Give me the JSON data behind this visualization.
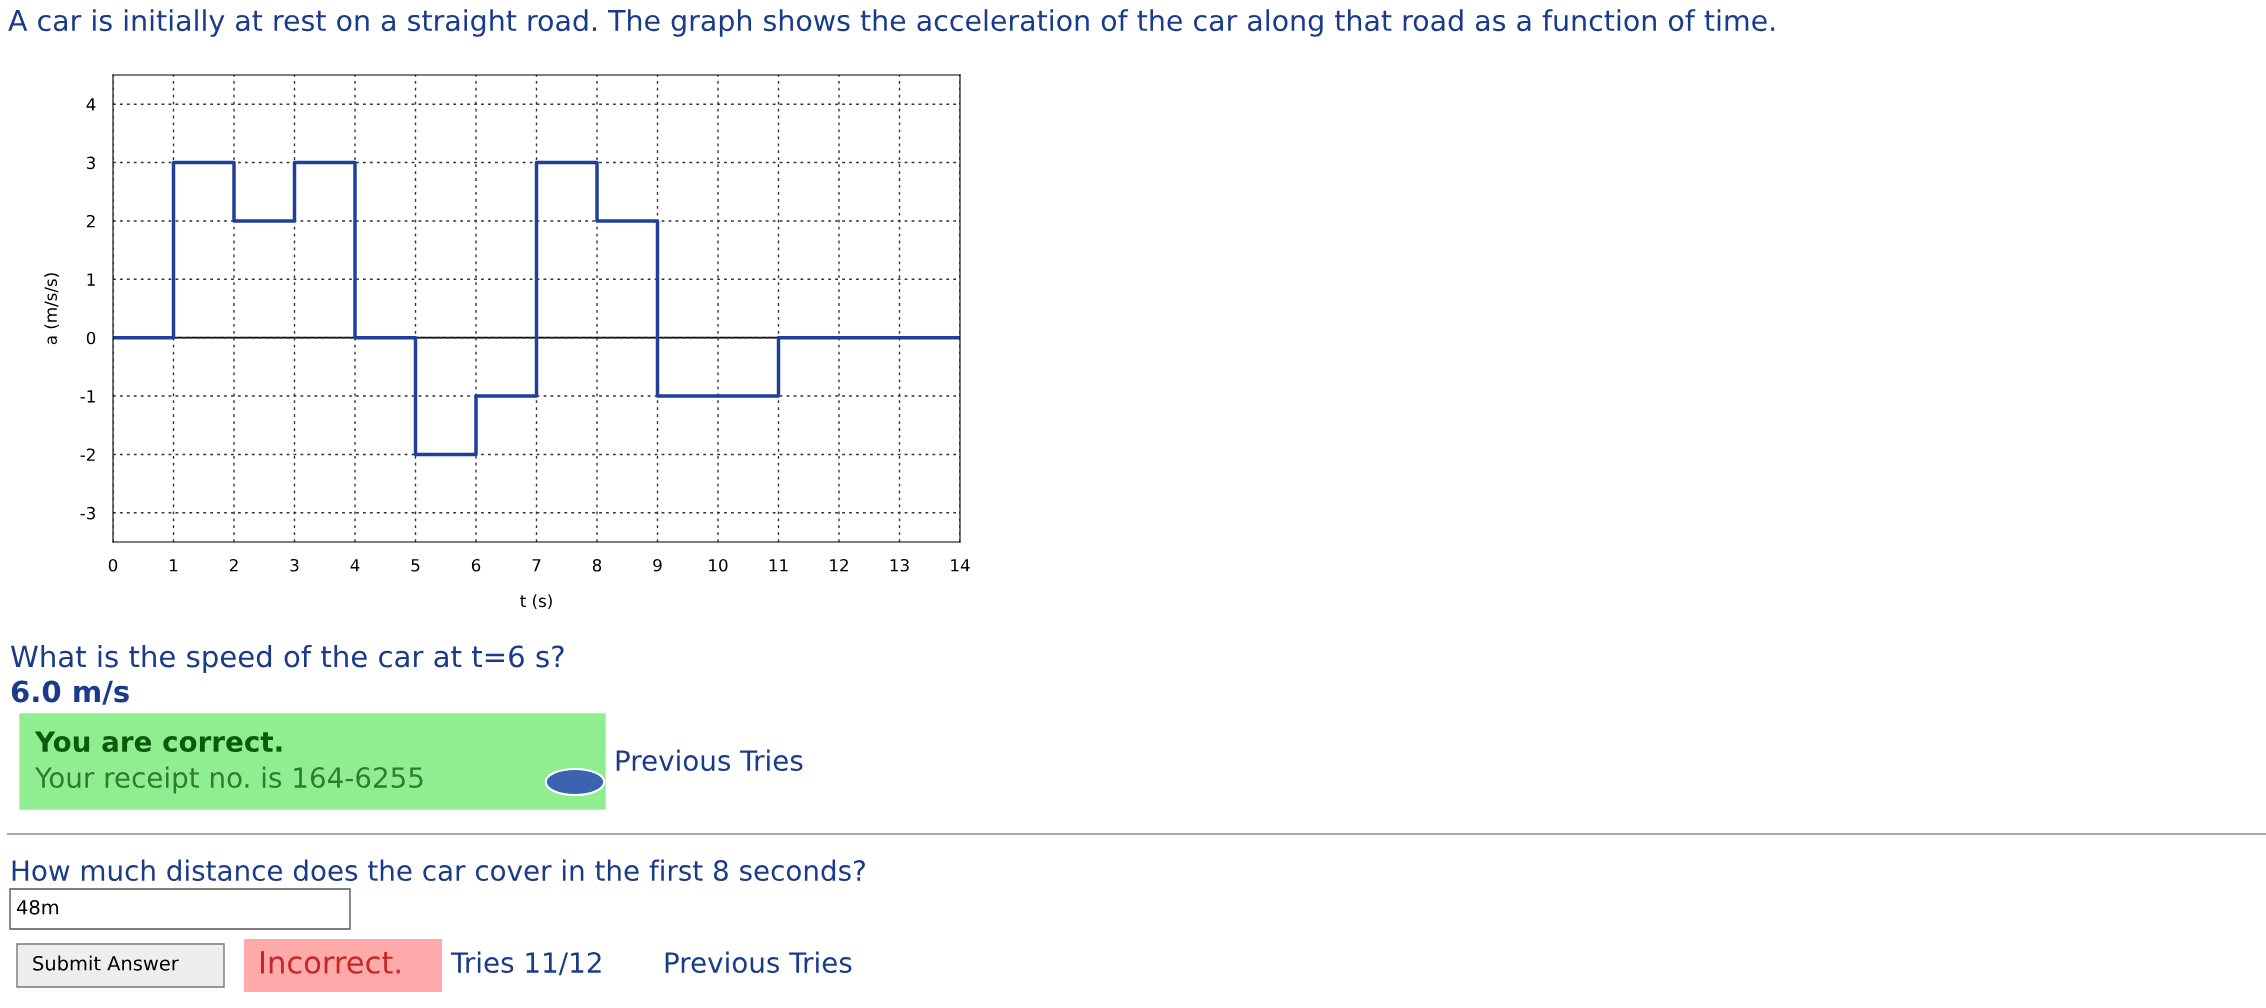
{
  "chart_data": {
    "type": "step",
    "title": "A car is initially at rest on a straight road. The graph shows the acceleration of the car along that road as a function of time.",
    "xlabel": "t (s)",
    "ylabel": "a (m/s/s)",
    "x": [
      0,
      1,
      2,
      3,
      4,
      5,
      6,
      7,
      8,
      9,
      11,
      14
    ],
    "values": [
      0,
      3,
      2,
      3,
      0,
      -2,
      -1,
      3,
      2,
      -1,
      0,
      0
    ],
    "color": "#1f3f9a",
    "xlim": [
      0,
      14
    ],
    "xticks": [
      0,
      1,
      2,
      3,
      4,
      5,
      6,
      7,
      8,
      9,
      10,
      11,
      12,
      13,
      14
    ],
    "ylim": [
      -3.5,
      4.5
    ],
    "yticks": [
      -3,
      -2,
      -1,
      0,
      1,
      2,
      3,
      4
    ],
    "grid": true,
    "line_style": "solid",
    "ref_lines": [
      {
        "axis": "y",
        "value": 0,
        "color": "#000000"
      }
    ],
    "annotations": [
      "What is the speed of the car at t=6 s?",
      "6.0 m/s",
      "You are correct.",
      "Your receipt no. is 164-6255",
      "Previous Tries",
      "How much distance does the car cover in the first 8 seconds?",
      "48m",
      "Submit Answer",
      "Incorrect.",
      "Tries 11/12",
      "Previous Tries"
    ]
  }
}
